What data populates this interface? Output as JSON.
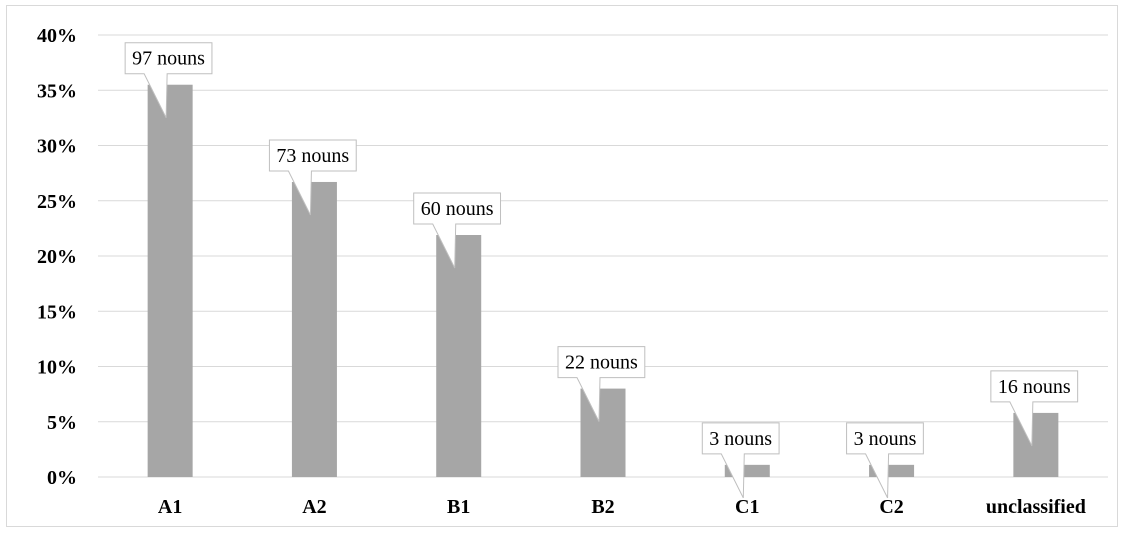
{
  "chart_data": {
    "type": "bar",
    "categories": [
      "A1",
      "A2",
      "B1",
      "B2",
      "C1",
      "C2",
      "unclassified"
    ],
    "values": [
      35.5,
      26.7,
      21.9,
      8.0,
      1.1,
      1.1,
      5.8
    ],
    "data_labels": [
      "97 nouns",
      "73 nouns",
      "60 nouns",
      "22 nouns",
      "3 nouns",
      "3 nouns",
      "16 nouns"
    ],
    "y_ticks": [
      "0%",
      "5%",
      "10%",
      "15%",
      "20%",
      "25%",
      "30%",
      "35%",
      "40%"
    ],
    "ylim": [
      0,
      40
    ],
    "grid": true,
    "bar_color": "#a6a6a6",
    "title": "",
    "xlabel": "",
    "ylabel": ""
  }
}
